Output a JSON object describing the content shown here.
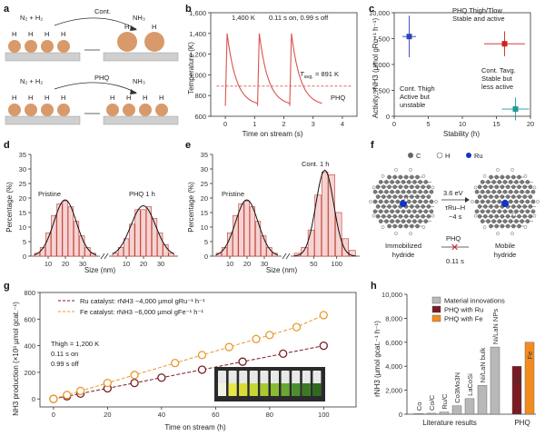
{
  "panel_labels": {
    "a": "a",
    "b": "b",
    "c": "c",
    "d": "d",
    "e": "e",
    "f": "f",
    "g": "g",
    "h": "h"
  },
  "panel_a": {
    "top_reactants": "N₂ + H₂",
    "top_arrow": "Cont.",
    "top_product": "NH₃",
    "bottom_reactants": "N₂ + H₂",
    "bottom_arrow": "PHQ",
    "bottom_product": "NH₃",
    "h_atom": "H"
  },
  "panel_d_labels": {
    "pristine": "Pristine",
    "phq": "PHQ 1 h"
  },
  "panel_e_labels": {
    "pristine": "Pristine",
    "cont": "Cont. 1 h"
  },
  "panel_f": {
    "legend_c": "C",
    "legend_h": "H",
    "legend_ru": "Ru",
    "energy": "3.6 eV",
    "tau": "τRu–H",
    "tau_value": "~4 s",
    "left_label_1": "Immobilized",
    "left_label_2": "hydride",
    "right_label_1": "Mobile",
    "right_label_2": "hydride",
    "phq": "PHQ",
    "phq_time": "0.11 s"
  },
  "chart_data": [
    {
      "panel": "b",
      "type": "line",
      "title": "",
      "xlabel": "Time on stream (s)",
      "ylabel": "Temperature (K)",
      "xlim": [
        -0.5,
        4.5
      ],
      "ylim": [
        600,
        1600
      ],
      "xticks": [
        0,
        1,
        2,
        3,
        4
      ],
      "yticks": [
        600,
        800,
        1000,
        1200,
        1400,
        1600
      ],
      "pulse_period_s": 1.1,
      "pulse_starts_s": [
        0,
        1.1,
        2.2
      ],
      "end_s": 3.3,
      "peak_K": 1400,
      "base_K": 700,
      "average_K": 891,
      "annotations": {
        "peak": "1,400 K",
        "timing": "0.11 s on, 0.99 s off",
        "average_prefix": "T",
        "average_sub": "avg.",
        "average_value": "= 891 K",
        "series": "PHQ"
      }
    },
    {
      "panel": "c",
      "type": "scatter",
      "xlabel": "Stability (h)",
      "ylabel": "Activity, rNH3 (µmol gRu⁻¹ h⁻¹)",
      "xlim": [
        0,
        20
      ],
      "ylim": [
        0,
        10000
      ],
      "xticks": [
        0,
        5,
        10,
        15,
        20
      ],
      "yticks": [
        0,
        2500,
        5000,
        7500,
        10000
      ],
      "points": [
        {
          "name": "Cont. Thigh",
          "x": 2.2,
          "y": 7700,
          "xerr": 1.0,
          "yerr": 2000,
          "color": "#3344bb",
          "label_lines": [
            "Cont. Thigh",
            "Active but",
            "unstable"
          ]
        },
        {
          "name": "PHQ Thigh/Tlow",
          "x": 16.2,
          "y": 7000,
          "xerr": 3.0,
          "yerr": 1200,
          "color": "#cc2222",
          "label_lines": [
            "PHQ Thigh/Tlow",
            "Stable and active"
          ]
        },
        {
          "name": "Cont. Tavg.",
          "x": 17.8,
          "y": 700,
          "xerr": 2.0,
          "yerr": 1100,
          "color": "#229999",
          "label_lines": [
            "Cont. Tavg.",
            "Stable but",
            "less active"
          ]
        }
      ]
    },
    {
      "panel": "d",
      "type": "bar",
      "xlabel": "Size (nm)",
      "ylabel": "Percentage (%)",
      "ylim": [
        0,
        35
      ],
      "yticks": [
        0,
        5,
        10,
        15,
        20,
        25,
        30,
        35
      ],
      "xtick_labels": [
        "10",
        "20",
        "30",
        "10",
        "20",
        "30"
      ],
      "series": [
        {
          "name": "Pristine",
          "values": [
            1,
            3,
            8,
            14,
            18,
            19,
            17,
            12,
            7,
            3,
            1
          ]
        },
        {
          "name": "PHQ 1 h",
          "values": [
            1,
            3,
            6,
            11,
            16,
            16,
            17,
            13,
            8,
            4,
            1
          ]
        }
      ]
    },
    {
      "panel": "e",
      "type": "bar",
      "xlabel": "Size (nm)",
      "ylabel": "Percentage (%)",
      "ylim": [
        0,
        35
      ],
      "yticks": [
        0,
        5,
        10,
        15,
        20,
        25,
        30,
        35
      ],
      "xtick_labels": [
        "10",
        "20",
        "30",
        "50",
        "100"
      ],
      "series": [
        {
          "name": "Pristine",
          "values": [
            1,
            3,
            8,
            14,
            18,
            19,
            17,
            12,
            7,
            3,
            1
          ]
        },
        {
          "name": "Cont. 1 h",
          "values": [
            1,
            3,
            9,
            21,
            29,
            28,
            15,
            6,
            2
          ]
        }
      ]
    },
    {
      "panel": "g",
      "type": "line",
      "xlabel": "Time on stream (h)",
      "ylabel": "NH3 production (×10³ µmol gcat.⁻¹)",
      "xlim": [
        -5,
        112
      ],
      "ylim": [
        -60,
        800
      ],
      "xticks": [
        0,
        20,
        40,
        60,
        80,
        100
      ],
      "yticks": [
        0,
        200,
        400,
        600,
        800
      ],
      "legend": [
        {
          "name": "Ru catalyst: rNH3 ~4,000 µmol gRu⁻¹ h⁻¹",
          "color": "#7a1a22"
        },
        {
          "name": "Fe catalyst: rNH3 ~6,000 µmol gFe⁻¹ h⁻¹",
          "color": "#e89a2b"
        }
      ],
      "series": [
        {
          "name": "Ru",
          "color": "#7a1a22",
          "x": [
            0,
            5,
            10,
            20,
            30,
            40,
            55,
            70,
            85,
            100
          ],
          "y": [
            0,
            20,
            40,
            80,
            120,
            160,
            220,
            280,
            340,
            400
          ]
        },
        {
          "name": "Fe",
          "color": "#e89a2b",
          "x": [
            0,
            5,
            10,
            20,
            30,
            45,
            55,
            65,
            75,
            80,
            90,
            100
          ],
          "y": [
            0,
            30,
            60,
            120,
            180,
            270,
            330,
            390,
            450,
            480,
            540,
            630
          ]
        }
      ],
      "annotations": {
        "line1": "Thigh = 1,200 K",
        "line2": "0.11 s on",
        "line3": "0.99 s off"
      }
    },
    {
      "panel": "h",
      "type": "bar",
      "ylabel": "rNH3 (µmol gcat.⁻¹ h⁻¹)",
      "ylim": [
        0,
        10000
      ],
      "yticks": [
        0,
        2000,
        4000,
        6000,
        8000,
        10000
      ],
      "group_labels": [
        "Literature results",
        "PHQ"
      ],
      "legend": [
        {
          "name": "Material innovations",
          "color": "#b8b8b8"
        },
        {
          "name": "PHQ with Ru",
          "color": "#7a1a22"
        },
        {
          "name": "PHQ with Fe",
          "color": "#f28c1e"
        }
      ],
      "categories": [
        "Co",
        "Co/C",
        "Ru/C",
        "Co3Mo3N",
        "LaCoSi",
        "Ni/LaN bulk",
        "Ni/LaN NPs",
        "Ru",
        "Fe"
      ],
      "values": [
        60,
        80,
        180,
        700,
        1300,
        2400,
        5600,
        4000,
        6000
      ],
      "colors": [
        "#b8b8b8",
        "#b8b8b8",
        "#b8b8b8",
        "#b8b8b8",
        "#b8b8b8",
        "#b8b8b8",
        "#b8b8b8",
        "#7a1a22",
        "#f28c1e"
      ]
    }
  ]
}
